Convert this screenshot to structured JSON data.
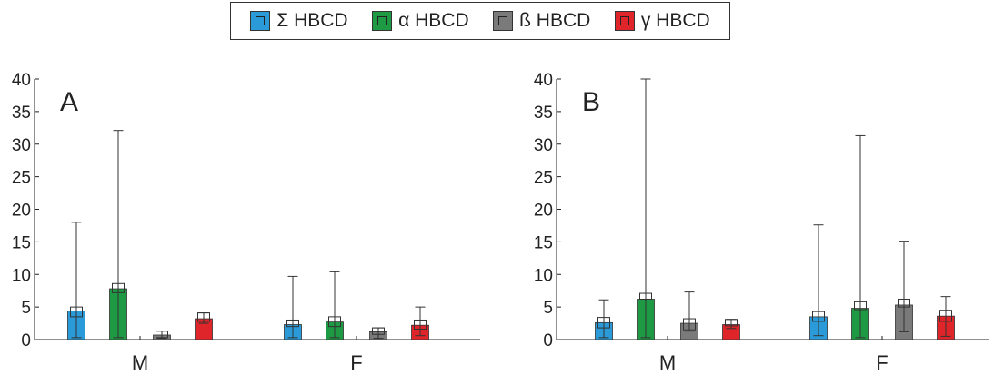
{
  "legend": {
    "items": [
      {
        "label": "Σ HBCD",
        "color": "#2a9ad8"
      },
      {
        "label": "α HBCD",
        "color": "#1e9a44"
      },
      {
        "label": "ß HBCD",
        "color": "#7a7a7a"
      },
      {
        "label": "γ HBCD",
        "color": "#e0252a"
      }
    ]
  },
  "chart_data": [
    {
      "type": "bar",
      "panel_label": "A",
      "categories": [
        "M",
        "F"
      ],
      "ylim": [
        0,
        40
      ],
      "yticks": [
        0,
        5,
        10,
        15,
        20,
        25,
        30,
        35,
        40
      ],
      "grid": false,
      "series": [
        {
          "name": "Σ HBCD",
          "color": "#2a9ad8",
          "values": [
            4.4,
            2.3
          ],
          "err_lo": [
            0.3,
            0.3
          ],
          "err_hi": [
            18,
            9.7
          ],
          "box": [
            3.5,
            5,
            2,
            3
          ]
        },
        {
          "name": "α HBCD",
          "color": "#1e9a44",
          "values": [
            7.8,
            2.7
          ],
          "err_lo": [
            0.3,
            0.3
          ],
          "err_hi": [
            32.1,
            10.4
          ],
          "box": [
            7.2,
            8.6,
            2,
            3.5
          ]
        },
        {
          "name": "ß HBCD",
          "color": "#7a7a7a",
          "values": [
            0.7,
            1.2
          ],
          "err_lo": [
            0.2,
            0.2
          ],
          "err_hi": [
            1.3,
            1.8
          ],
          "box": [
            0.3,
            1.3,
            0.8,
            1.8
          ]
        },
        {
          "name": "γ HBCD",
          "color": "#e0252a",
          "values": [
            3.2,
            2.2
          ],
          "err_lo": [
            2.5,
            0.6
          ],
          "err_hi": [
            4.1,
            5
          ],
          "box": [
            2.8,
            4.1,
            1.6,
            3
          ]
        }
      ]
    },
    {
      "type": "bar",
      "panel_label": "B",
      "categories": [
        "M",
        "F"
      ],
      "ylim": [
        0,
        40
      ],
      "yticks": [
        0,
        5,
        10,
        15,
        20,
        25,
        30,
        35,
        40
      ],
      "grid": false,
      "series": [
        {
          "name": "Σ HBCD",
          "color": "#2a9ad8",
          "values": [
            2.6,
            3.5
          ],
          "err_lo": [
            0.3,
            0.6
          ],
          "err_hi": [
            6.1,
            17.6
          ],
          "box": [
            1.8,
            3.4,
            2.8,
            4.3
          ]
        },
        {
          "name": "α HBCD",
          "color": "#1e9a44",
          "values": [
            6.2,
            4.8
          ],
          "err_lo": [
            0.3,
            0.3
          ],
          "err_hi": [
            40,
            31.3
          ],
          "box": [
            6.2,
            7.1,
            4.6,
            5.8
          ]
        },
        {
          "name": "ß HBCD",
          "color": "#7a7a7a",
          "values": [
            2.5,
            5.3
          ],
          "err_lo": [
            1.3,
            1.2
          ],
          "err_hi": [
            7.3,
            15.1
          ],
          "box": [
            1.5,
            3.2,
            5,
            6.2
          ]
        },
        {
          "name": "γ HBCD",
          "color": "#e0252a",
          "values": [
            2.3,
            3.6
          ],
          "err_lo": [
            1.7,
            0.5
          ],
          "err_hi": [
            3.1,
            6.6
          ],
          "box": [
            2.1,
            3.1,
            2.8,
            4.5
          ]
        }
      ]
    }
  ]
}
